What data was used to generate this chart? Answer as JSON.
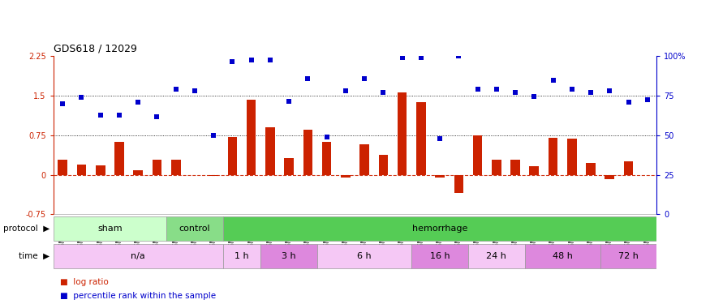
{
  "title": "GDS618 / 12029",
  "samples": [
    "GSM16636",
    "GSM16640",
    "GSM16641",
    "GSM16642",
    "GSM16643",
    "GSM16644",
    "GSM16637",
    "GSM16638",
    "GSM16639",
    "GSM16645",
    "GSM16646",
    "GSM16647",
    "GSM16648",
    "GSM16649",
    "GSM16650",
    "GSM16651",
    "GSM16652",
    "GSM16653",
    "GSM16654",
    "GSM16655",
    "GSM16656",
    "GSM16657",
    "GSM16658",
    "GSM16659",
    "GSM16660",
    "GSM16661",
    "GSM16662",
    "GSM16663",
    "GSM16664",
    "GSM16666",
    "GSM16667",
    "GSM16668"
  ],
  "log_ratio": [
    0.28,
    0.2,
    0.18,
    0.62,
    0.08,
    0.28,
    0.28,
    0.0,
    -0.02,
    0.72,
    1.42,
    0.9,
    0.32,
    0.85,
    0.62,
    -0.05,
    0.58,
    0.38,
    1.57,
    1.38,
    -0.05,
    -0.35,
    0.75,
    0.28,
    0.28,
    0.17,
    0.7,
    0.68,
    0.22,
    -0.08,
    0.25,
    0.0
  ],
  "percentile": [
    1.35,
    1.47,
    1.13,
    1.13,
    1.38,
    1.1,
    1.62,
    1.6,
    0.75,
    2.15,
    2.18,
    2.18,
    1.4,
    1.83,
    0.72,
    1.6,
    1.82,
    1.57,
    2.22,
    2.22,
    0.68,
    2.25,
    1.62,
    1.62,
    1.57,
    1.48,
    1.8,
    1.62,
    1.57,
    1.6,
    1.38,
    1.42
  ],
  "protocol_groups": [
    {
      "label": "sham",
      "start": 0,
      "end": 5,
      "color": "#ccffcc"
    },
    {
      "label": "control",
      "start": 6,
      "end": 8,
      "color": "#88dd88"
    },
    {
      "label": "hemorrhage",
      "start": 9,
      "end": 31,
      "color": "#55cc55"
    }
  ],
  "time_groups": [
    {
      "label": "n/a",
      "start": 0,
      "end": 8,
      "color": "#f5c8f5"
    },
    {
      "label": "1 h",
      "start": 9,
      "end": 10,
      "color": "#f5c8f5"
    },
    {
      "label": "3 h",
      "start": 11,
      "end": 13,
      "color": "#dd88dd"
    },
    {
      "label": "6 h",
      "start": 14,
      "end": 18,
      "color": "#f5c8f5"
    },
    {
      "label": "16 h",
      "start": 19,
      "end": 21,
      "color": "#dd88dd"
    },
    {
      "label": "24 h",
      "start": 22,
      "end": 24,
      "color": "#f5c8f5"
    },
    {
      "label": "48 h",
      "start": 25,
      "end": 28,
      "color": "#dd88dd"
    },
    {
      "label": "72 h",
      "start": 29,
      "end": 31,
      "color": "#dd88dd"
    }
  ],
  "bar_color": "#cc2200",
  "dot_color": "#0000cc",
  "ylim_left": [
    -0.75,
    2.25
  ],
  "ylim_right": [
    0,
    100
  ],
  "yticks_left": [
    -0.75,
    0.0,
    0.75,
    1.5,
    2.25
  ],
  "yticks_right": [
    0,
    25,
    50,
    75,
    100
  ],
  "ytick_labels_left": [
    "-0.75",
    "0",
    "0.75",
    "1.5",
    "2.25"
  ],
  "ytick_labels_right": [
    "0",
    "25",
    "50",
    "75",
    "100%"
  ],
  "bg_color": "#f0f0f0"
}
